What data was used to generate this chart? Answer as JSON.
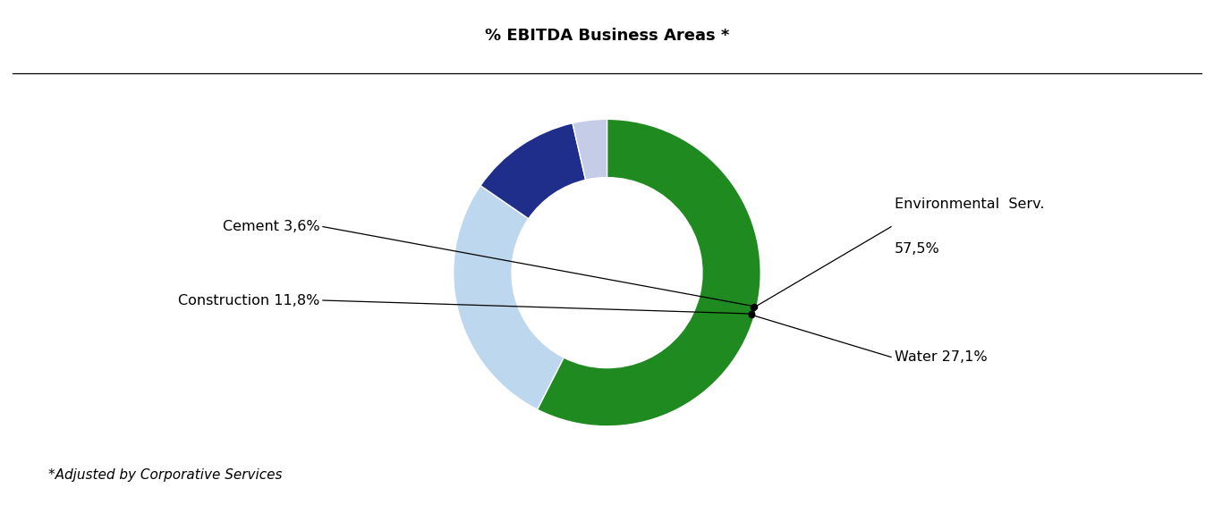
{
  "title": "% EBITDA Business Areas *",
  "footnote": "*Adjusted by Corporative Services",
  "slices": [
    {
      "label": "Environmental  Serv.",
      "value": 57.5,
      "color": "#1f8a1f",
      "value_label": "57,5%"
    },
    {
      "label": "Water 27,1%",
      "value": 27.1,
      "color": "#bdd7ee"
    },
    {
      "label": "Construction 11,8%",
      "value": 11.8,
      "color": "#1f2e8a"
    },
    {
      "label": "Cement 3,6%",
      "value": 3.6,
      "color": "#c5cce8"
    }
  ],
  "donut_width": 0.38,
  "bg_color": "#ffffff",
  "title_fontsize": 13,
  "label_fontsize": 11.5,
  "footnote_fontsize": 11
}
